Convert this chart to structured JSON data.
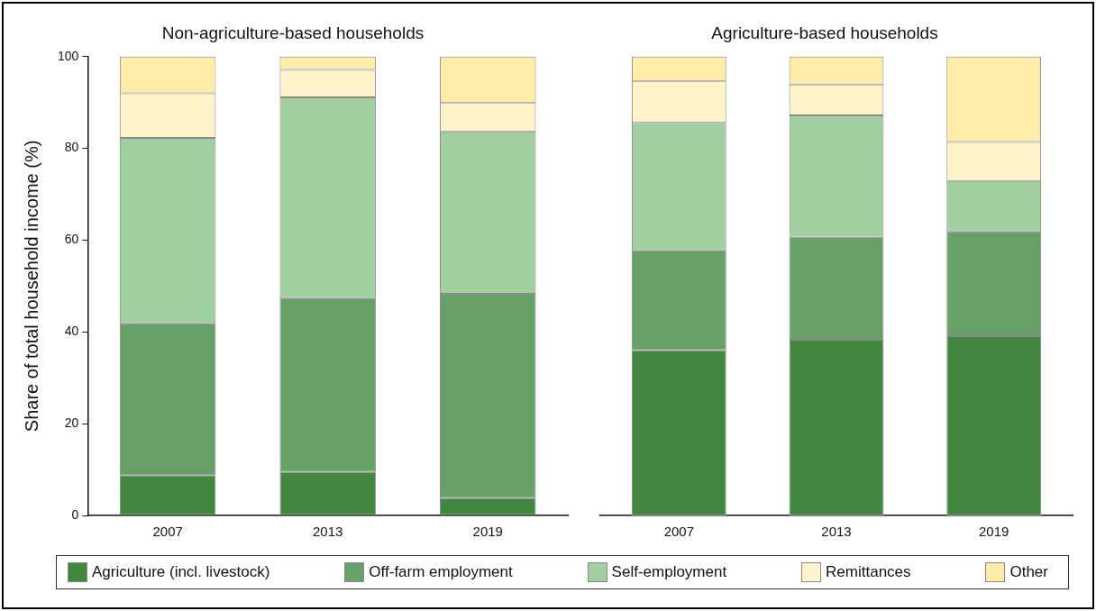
{
  "chart_data": [
    {
      "type": "bar",
      "title": "Non-agriculture-based households",
      "ylabel": "Share of total household income (%)",
      "categories": [
        "2007",
        "2013",
        "2019"
      ],
      "stacked": true,
      "ylim": [
        0,
        100
      ],
      "yticks": [
        0,
        20,
        40,
        60,
        80,
        100
      ],
      "grid": false,
      "legend": "bottom",
      "series": [
        {
          "name": "Agriculture (incl. livestock)",
          "color": "#41873f",
          "values": [
            8.8,
            9.5,
            3.8
          ]
        },
        {
          "name": "Off-farm employment",
          "color": "#67a068",
          "values": [
            33.1,
            37.9,
            44.5
          ]
        },
        {
          "name": "Self-employment",
          "color": "#a1cf9f",
          "values": [
            40.4,
            43.7,
            35.4
          ]
        },
        {
          "name": "Remittances",
          "color": "#fef3c9",
          "values": [
            9.7,
            6.0,
            6.3
          ]
        },
        {
          "name": "Other",
          "color": "#feeca8",
          "values": [
            8.0,
            2.9,
            10.0
          ]
        }
      ]
    },
    {
      "type": "bar",
      "title": "Agriculture-based households",
      "categories": [
        "2007",
        "2013",
        "2019"
      ],
      "stacked": true,
      "ylim": [
        0,
        100
      ],
      "yticks": [
        0,
        20,
        40,
        60,
        80,
        100
      ],
      "grid": false,
      "legend": false,
      "tick_labels": "x",
      "series": [
        {
          "name": "Agriculture (incl. livestock)",
          "color": "#41873f",
          "values": [
            36.0,
            38.3,
            39.1
          ]
        },
        {
          "name": "Off-farm employment",
          "color": "#67a068",
          "values": [
            21.8,
            22.5,
            22.8
          ]
        },
        {
          "name": "Self-employment",
          "color": "#a1cf9f",
          "values": [
            27.8,
            26.4,
            11.0
          ]
        },
        {
          "name": "Remittances",
          "color": "#fef3c9",
          "values": [
            9.1,
            6.7,
            8.5
          ]
        },
        {
          "name": "Other",
          "color": "#feeca8",
          "values": [
            5.3,
            6.1,
            18.6
          ]
        }
      ]
    }
  ]
}
